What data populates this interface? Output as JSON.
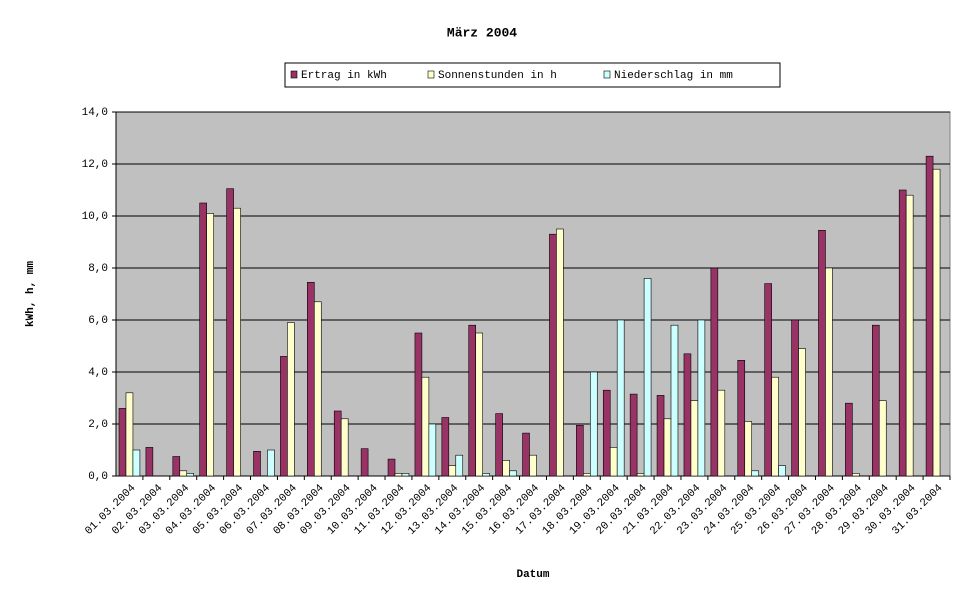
{
  "chart_data": {
    "type": "bar",
    "title": "März 2004",
    "x_label": "Datum",
    "y_label": "kWh, h, mm",
    "categories": [
      "01.03.2004",
      "02.03.2004",
      "03.03.2004",
      "04.03.2004",
      "05.03.2004",
      "06.03.2004",
      "07.03.2004",
      "08.03.2004",
      "09.03.2004",
      "10.03.2004",
      "11.03.2004",
      "12.03.2004",
      "13.03.2004",
      "14.03.2004",
      "15.03.2004",
      "16.03.2004",
      "17.03.2004",
      "18.03.2004",
      "19.03.2004",
      "20.03.2004",
      "21.03.2004",
      "22.03.2004",
      "23.03.2004",
      "24.03.2004",
      "25.03.2004",
      "26.03.2004",
      "27.03.2004",
      "28.03.2004",
      "29.03.2004",
      "30.03.2004",
      "31.03.2004"
    ],
    "series": [
      {
        "name": "Ertrag in kWh",
        "color": "#993366",
        "values": [
          2.6,
          1.1,
          0.75,
          10.5,
          11.05,
          0.95,
          4.6,
          7.45,
          2.5,
          1.05,
          0.65,
          5.5,
          2.25,
          5.8,
          2.4,
          1.65,
          9.3,
          1.95,
          3.3,
          3.15,
          3.1,
          4.7,
          8.0,
          4.45,
          7.4,
          6.0,
          9.45,
          2.8,
          5.8,
          11.0,
          12.3
        ]
      },
      {
        "name": "Sonnenstunden in h",
        "color": "#ffffcc",
        "values": [
          3.2,
          0,
          0.2,
          10.1,
          10.3,
          0,
          5.9,
          6.7,
          2.2,
          0,
          0.1,
          3.8,
          0.4,
          5.5,
          0.6,
          0.8,
          9.5,
          0.1,
          1.1,
          0.1,
          2.2,
          2.9,
          3.3,
          2.1,
          3.8,
          4.9,
          8.0,
          0.1,
          2.9,
          10.8,
          11.8
        ]
      },
      {
        "name": "Niederschlag in mm",
        "color": "#ccffff",
        "values": [
          1.0,
          0,
          0.1,
          0,
          0,
          1.0,
          0,
          0,
          0,
          0,
          0.1,
          2.0,
          0.8,
          0.1,
          0.2,
          0,
          0,
          4.0,
          6.0,
          7.6,
          5.8,
          6.0,
          0,
          0.2,
          0.4,
          0,
          0,
          0,
          0,
          0,
          0
        ]
      }
    ],
    "ylim": [
      0,
      14
    ],
    "yticks": [
      {
        "value": 0,
        "label": "0,0"
      },
      {
        "value": 2,
        "label": "2,0"
      },
      {
        "value": 4,
        "label": "4,0"
      },
      {
        "value": 6,
        "label": "6,0"
      },
      {
        "value": 8,
        "label": "8,0"
      },
      {
        "value": 10,
        "label": "10,0"
      },
      {
        "value": 12,
        "label": "12,0"
      },
      {
        "value": 14,
        "label": "14,0"
      }
    ],
    "grid": true,
    "plot_background": "#c0c0c0"
  }
}
